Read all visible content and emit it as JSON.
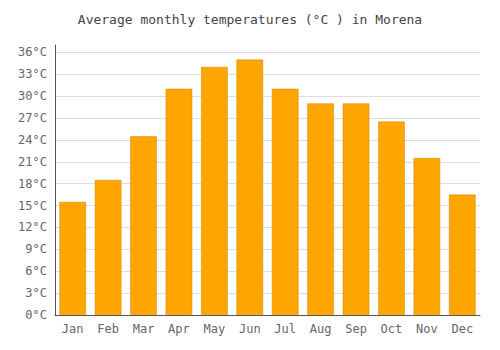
{
  "chart_data": {
    "type": "bar",
    "title": "Average monthly temperatures (°C ) in Morena",
    "categories": [
      "Jan",
      "Feb",
      "Mar",
      "Apr",
      "May",
      "Jun",
      "Jul",
      "Aug",
      "Sep",
      "Oct",
      "Nov",
      "Dec"
    ],
    "values": [
      15.5,
      18.5,
      24.5,
      31.0,
      34.0,
      35.0,
      31.0,
      29.0,
      29.0,
      26.5,
      21.5,
      16.5
    ],
    "color": "#FFA500",
    "ylim": [
      0,
      37
    ],
    "yticks": [
      {
        "value": 0,
        "label": "0°C"
      },
      {
        "value": 3,
        "label": "3°C"
      },
      {
        "value": 6,
        "label": "6°C"
      },
      {
        "value": 9,
        "label": "9°C"
      },
      {
        "value": 12,
        "label": "12°C"
      },
      {
        "value": 15,
        "label": "15°C"
      },
      {
        "value": 18,
        "label": "18°C"
      },
      {
        "value": 21,
        "label": "21°C"
      },
      {
        "value": 24,
        "label": "24°C"
      },
      {
        "value": 27,
        "label": "27°C"
      },
      {
        "value": 30,
        "label": "30°C"
      },
      {
        "value": 33,
        "label": "33°C"
      },
      {
        "value": 36,
        "label": "36°C"
      }
    ],
    "grid": true
  }
}
